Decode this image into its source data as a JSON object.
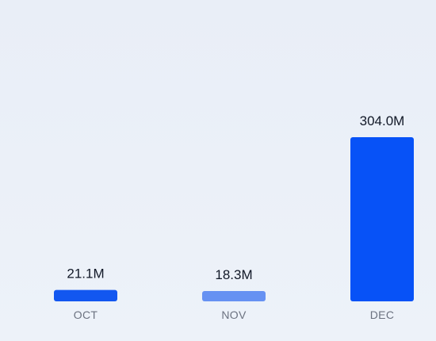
{
  "chart_data": {
    "type": "bar",
    "categories": [
      "OCT",
      "NOV",
      "DEC"
    ],
    "values": [
      21.1,
      18.3,
      304.0
    ],
    "value_labels": [
      "21.1M",
      "18.3M",
      "304.0M"
    ],
    "title": "",
    "xlabel": "",
    "ylabel": "",
    "ylim": [
      0,
      304.0
    ],
    "grid": false,
    "legend": "none",
    "bar_colors": [
      "#1257f0",
      "#6691f2",
      "#0752f7"
    ]
  }
}
